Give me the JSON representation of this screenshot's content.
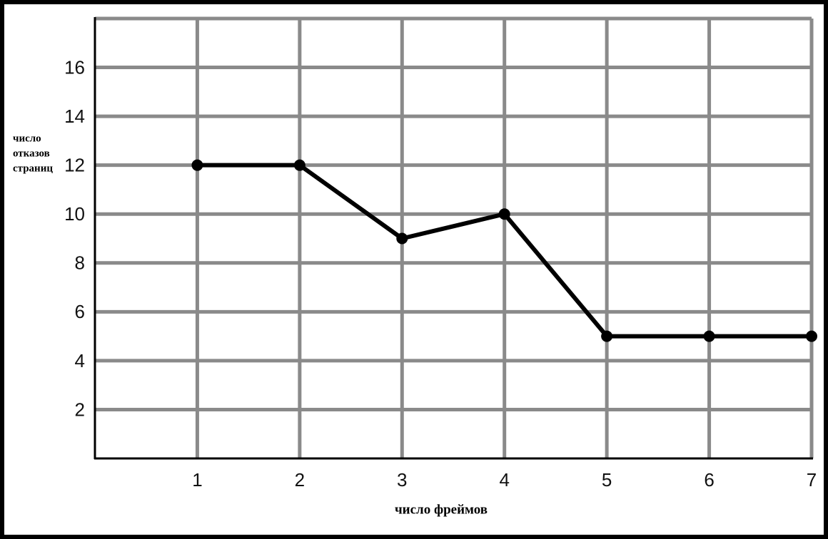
{
  "chart_data": {
    "type": "line",
    "xlabel": "число фреймов",
    "ylabel": [
      "число",
      "отказов",
      "страниц"
    ],
    "x": [
      1,
      2,
      3,
      4,
      5,
      6,
      7
    ],
    "series": [
      {
        "color": "#000000",
        "values": [
          12,
          12,
          9,
          10,
          5,
          5,
          5
        ]
      }
    ],
    "xlim": [
      0,
      7
    ],
    "xticks": [
      1,
      2,
      3,
      4,
      5,
      6,
      7
    ],
    "ylim": [
      0,
      18
    ],
    "yticks": [
      2,
      4,
      6,
      8,
      10,
      12,
      14,
      16
    ],
    "grid": true
  }
}
